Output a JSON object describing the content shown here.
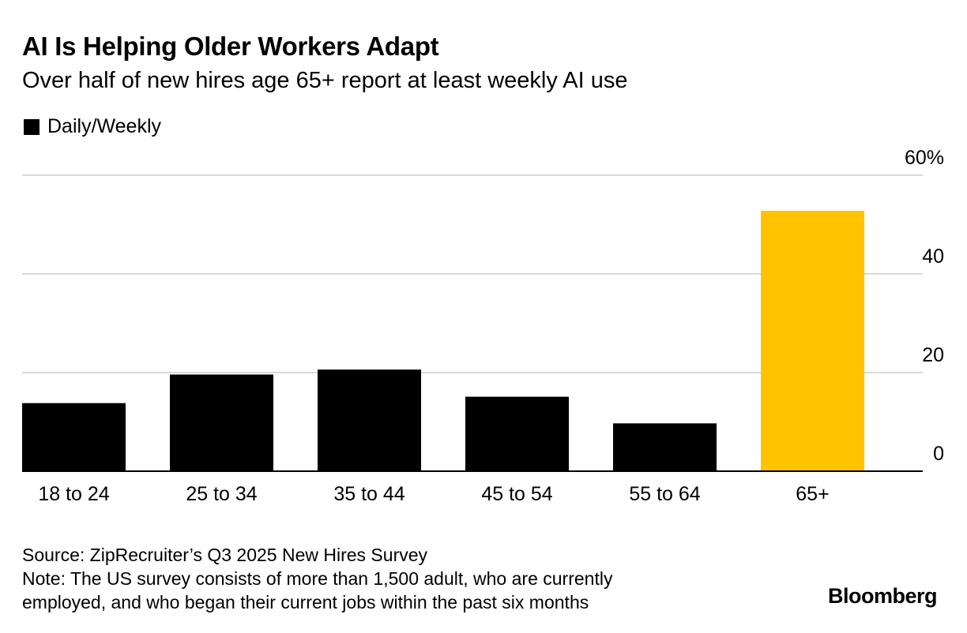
{
  "title": "AI Is Helping Older Workers Adapt",
  "subtitle": "Over half of new hires age 65+ report at least weekly AI use",
  "legend": {
    "label": "Daily/Weekly"
  },
  "footer": {
    "source": "Source: ZipRecruiter’s Q3 2025 New Hires Survey",
    "note_line1": "Note: The US survey consists of more than 1,500 adult, who are currently",
    "note_line2": "employed, and who began their current jobs within the past six months",
    "brand": "Bloomberg"
  },
  "chart_data": {
    "type": "bar",
    "categories": [
      "18 to 24",
      "25 to 34",
      "35 to 44",
      "45 to 54",
      "55 to 64",
      "65+"
    ],
    "series": [
      {
        "name": "Daily/Weekly",
        "values": [
          13.8,
          19.6,
          20.6,
          15.1,
          9.7,
          52.8
        ]
      }
    ],
    "highlight_index": 5,
    "colors": {
      "default": "#000000",
      "highlight": "#FFC300",
      "grid": "#d9d9d9",
      "axis": "#000000"
    },
    "ylim": [
      0,
      60
    ],
    "yticks": [
      0,
      20,
      40,
      60
    ],
    "ytick_labels": [
      "0",
      "20",
      "40",
      "60%"
    ],
    "y_axis_side": "right",
    "grid": true
  }
}
